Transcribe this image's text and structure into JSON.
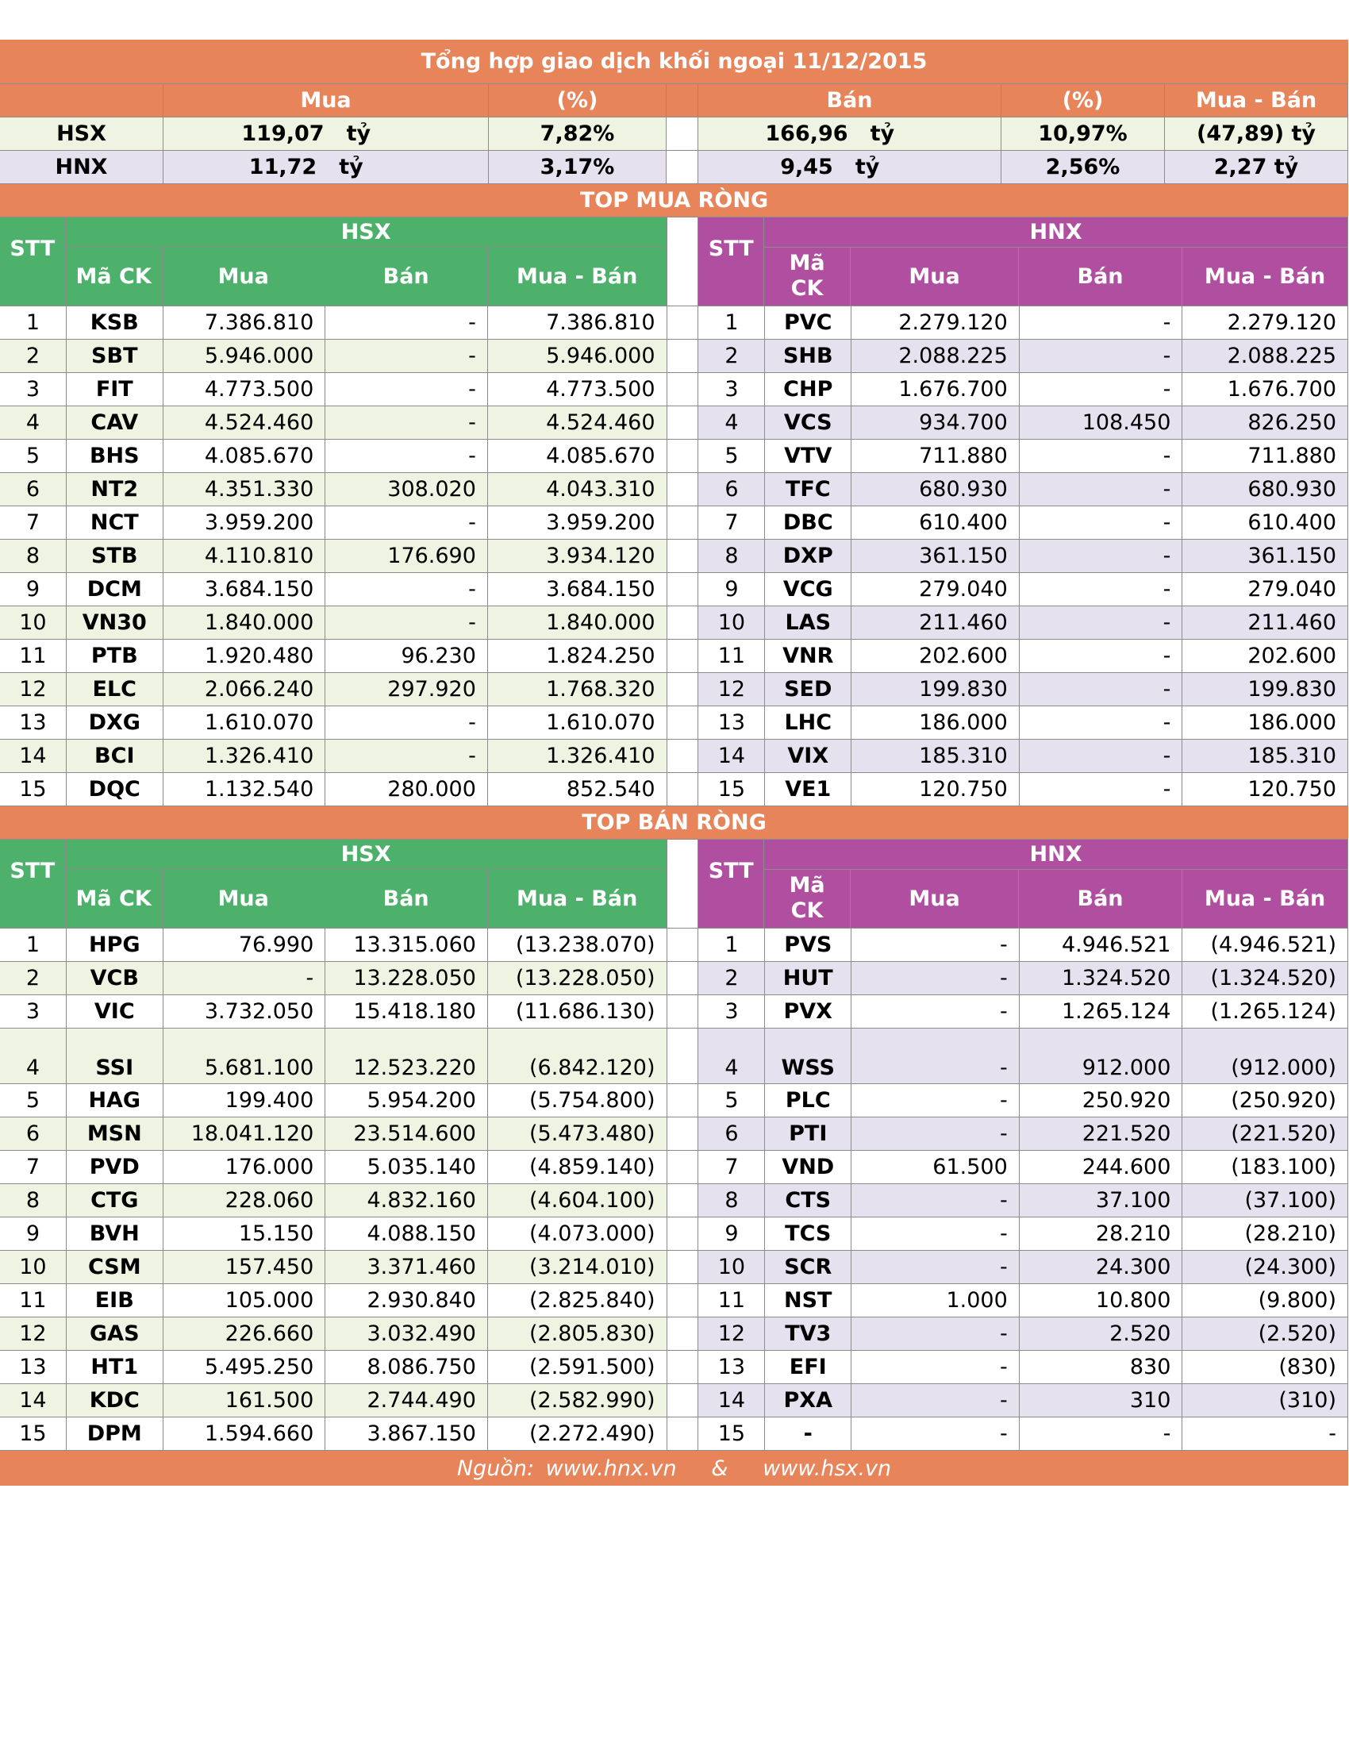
{
  "title": "Tổng hợp giao dịch khối ngoại 11/12/2015",
  "summary": {
    "headers": {
      "mua": "Mua",
      "pct1": "(%)",
      "ban": "Bán",
      "pct2": "(%)",
      "diff": "Mua - Bán"
    },
    "unit": "tỷ",
    "rows": [
      {
        "label": "HSX",
        "mua": "119,07",
        "pct1": "7,82%",
        "ban": "166,96",
        "pct2": "10,97%",
        "diff": "(47,89) tỷ"
      },
      {
        "label": "HNX",
        "mua": "11,72",
        "pct1": "3,17%",
        "ban": "9,45",
        "pct2": "2,56%",
        "diff": "2,27 tỷ"
      }
    ]
  },
  "top_buy": {
    "title": "TOP MUA RÒNG",
    "hsx_label": "HSX",
    "hnx_label": "HNX",
    "headers": {
      "stt": "STT",
      "code": "Mã CK",
      "code_hnx": "Mã CK",
      "mua": "Mua",
      "ban": "Bán",
      "diff": "Mua - Bán"
    },
    "hsx": [
      [
        "1",
        "KSB",
        "7.386.810",
        "-",
        "7.386.810"
      ],
      [
        "2",
        "SBT",
        "5.946.000",
        "-",
        "5.946.000"
      ],
      [
        "3",
        "FIT",
        "4.773.500",
        "-",
        "4.773.500"
      ],
      [
        "4",
        "CAV",
        "4.524.460",
        "-",
        "4.524.460"
      ],
      [
        "5",
        "BHS",
        "4.085.670",
        "-",
        "4.085.670"
      ],
      [
        "6",
        "NT2",
        "4.351.330",
        "308.020",
        "4.043.310"
      ],
      [
        "7",
        "NCT",
        "3.959.200",
        "-",
        "3.959.200"
      ],
      [
        "8",
        "STB",
        "4.110.810",
        "176.690",
        "3.934.120"
      ],
      [
        "9",
        "DCM",
        "3.684.150",
        "-",
        "3.684.150"
      ],
      [
        "10",
        "VN30",
        "1.840.000",
        "-",
        "1.840.000"
      ],
      [
        "11",
        "PTB",
        "1.920.480",
        "96.230",
        "1.824.250"
      ],
      [
        "12",
        "ELC",
        "2.066.240",
        "297.920",
        "1.768.320"
      ],
      [
        "13",
        "DXG",
        "1.610.070",
        "-",
        "1.610.070"
      ],
      [
        "14",
        "BCI",
        "1.326.410",
        "-",
        "1.326.410"
      ],
      [
        "15",
        "DQC",
        "1.132.540",
        "280.000",
        "852.540"
      ]
    ],
    "hnx": [
      [
        "1",
        "PVC",
        "2.279.120",
        "-",
        "2.279.120"
      ],
      [
        "2",
        "SHB",
        "2.088.225",
        "-",
        "2.088.225"
      ],
      [
        "3",
        "CHP",
        "1.676.700",
        "-",
        "1.676.700"
      ],
      [
        "4",
        "VCS",
        "934.700",
        "108.450",
        "826.250"
      ],
      [
        "5",
        "VTV",
        "711.880",
        "-",
        "711.880"
      ],
      [
        "6",
        "TFC",
        "680.930",
        "-",
        "680.930"
      ],
      [
        "7",
        "DBC",
        "610.400",
        "-",
        "610.400"
      ],
      [
        "8",
        "DXP",
        "361.150",
        "-",
        "361.150"
      ],
      [
        "9",
        "VCG",
        "279.040",
        "-",
        "279.040"
      ],
      [
        "10",
        "LAS",
        "211.460",
        "-",
        "211.460"
      ],
      [
        "11",
        "VNR",
        "202.600",
        "-",
        "202.600"
      ],
      [
        "12",
        "SED",
        "199.830",
        "-",
        "199.830"
      ],
      [
        "13",
        "LHC",
        "186.000",
        "-",
        "186.000"
      ],
      [
        "14",
        "VIX",
        "185.310",
        "-",
        "185.310"
      ],
      [
        "15",
        "VE1",
        "120.750",
        "-",
        "120.750"
      ]
    ]
  },
  "top_sell": {
    "title": "TOP BÁN RÒNG",
    "hsx_label": "HSX",
    "hnx_label": "HNX",
    "headers": {
      "stt": "STT",
      "code": "Mã CK",
      "code_hnx": "Mã CK",
      "mua": "Mua",
      "ban": "Bán",
      "diff": "Mua - Bán"
    },
    "hsx": [
      [
        "1",
        "HPG",
        "76.990",
        "13.315.060",
        "(13.238.070)"
      ],
      [
        "2",
        "VCB",
        "-",
        "13.228.050",
        "(13.228.050)"
      ],
      [
        "3",
        "VIC",
        "3.732.050",
        "15.418.180",
        "(11.686.130)"
      ],
      [
        "4",
        "SSI",
        "5.681.100",
        "12.523.220",
        "(6.842.120)"
      ],
      [
        "5",
        "HAG",
        "199.400",
        "5.954.200",
        "(5.754.800)"
      ],
      [
        "6",
        "MSN",
        "18.041.120",
        "23.514.600",
        "(5.473.480)"
      ],
      [
        "7",
        "PVD",
        "176.000",
        "5.035.140",
        "(4.859.140)"
      ],
      [
        "8",
        "CTG",
        "228.060",
        "4.832.160",
        "(4.604.100)"
      ],
      [
        "9",
        "BVH",
        "15.150",
        "4.088.150",
        "(4.073.000)"
      ],
      [
        "10",
        "CSM",
        "157.450",
        "3.371.460",
        "(3.214.010)"
      ],
      [
        "11",
        "EIB",
        "105.000",
        "2.930.840",
        "(2.825.840)"
      ],
      [
        "12",
        "GAS",
        "226.660",
        "3.032.490",
        "(2.805.830)"
      ],
      [
        "13",
        "HT1",
        "5.495.250",
        "8.086.750",
        "(2.591.500)"
      ],
      [
        "14",
        "KDC",
        "161.500",
        "2.744.490",
        "(2.582.990)"
      ],
      [
        "15",
        "DPM",
        "1.594.660",
        "3.867.150",
        "(2.272.490)"
      ]
    ],
    "hnx": [
      [
        "1",
        "PVS",
        "-",
        "4.946.521",
        "(4.946.521)"
      ],
      [
        "2",
        "HUT",
        "-",
        "1.324.520",
        "(1.324.520)"
      ],
      [
        "3",
        "PVX",
        "-",
        "1.265.124",
        "(1.265.124)"
      ],
      [
        "4",
        "WSS",
        "-",
        "912.000",
        "(912.000)"
      ],
      [
        "5",
        "PLC",
        "-",
        "250.920",
        "(250.920)"
      ],
      [
        "6",
        "PTI",
        "-",
        "221.520",
        "(221.520)"
      ],
      [
        "7",
        "VND",
        "61.500",
        "244.600",
        "(183.100)"
      ],
      [
        "8",
        "CTS",
        "-",
        "37.100",
        "(37.100)"
      ],
      [
        "9",
        "TCS",
        "-",
        "28.210",
        "(28.210)"
      ],
      [
        "10",
        "SCR",
        "-",
        "24.300",
        "(24.300)"
      ],
      [
        "11",
        "NST",
        "1.000",
        "10.800",
        "(9.800)"
      ],
      [
        "12",
        "TV3",
        "-",
        "2.520",
        "(2.520)"
      ],
      [
        "13",
        "EFI",
        "-",
        "830",
        "(830)"
      ],
      [
        "14",
        "PXA",
        "-",
        "310",
        "(310)"
      ],
      [
        "15",
        "-",
        "-",
        "-",
        "-"
      ]
    ]
  },
  "footer": {
    "source_label": "Nguồn:",
    "link1": "www.hnx.vn",
    "sep": "&",
    "link2": "www.hsx.vn"
  }
}
